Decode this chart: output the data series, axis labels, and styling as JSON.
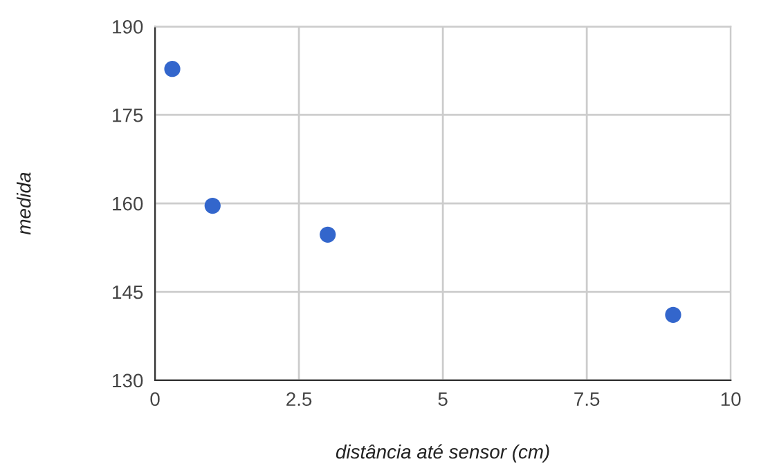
{
  "chart_data": {
    "type": "scatter",
    "xlabel": "distância até sensor (cm)",
    "ylabel": "medida",
    "x": [
      0.3,
      1.0,
      3.0,
      9.0
    ],
    "series": [
      {
        "color": "#3366cc",
        "values": [
          182.8,
          159.6,
          154.7,
          141.1
        ]
      }
    ],
    "xlim": [
      0,
      10
    ],
    "xticks": [
      0,
      2.5,
      5,
      7.5,
      10
    ],
    "ylim": [
      130,
      190
    ],
    "yticks": [
      130,
      145,
      160,
      175,
      190
    ],
    "grid": true,
    "marker": "circle",
    "legend": false
  }
}
